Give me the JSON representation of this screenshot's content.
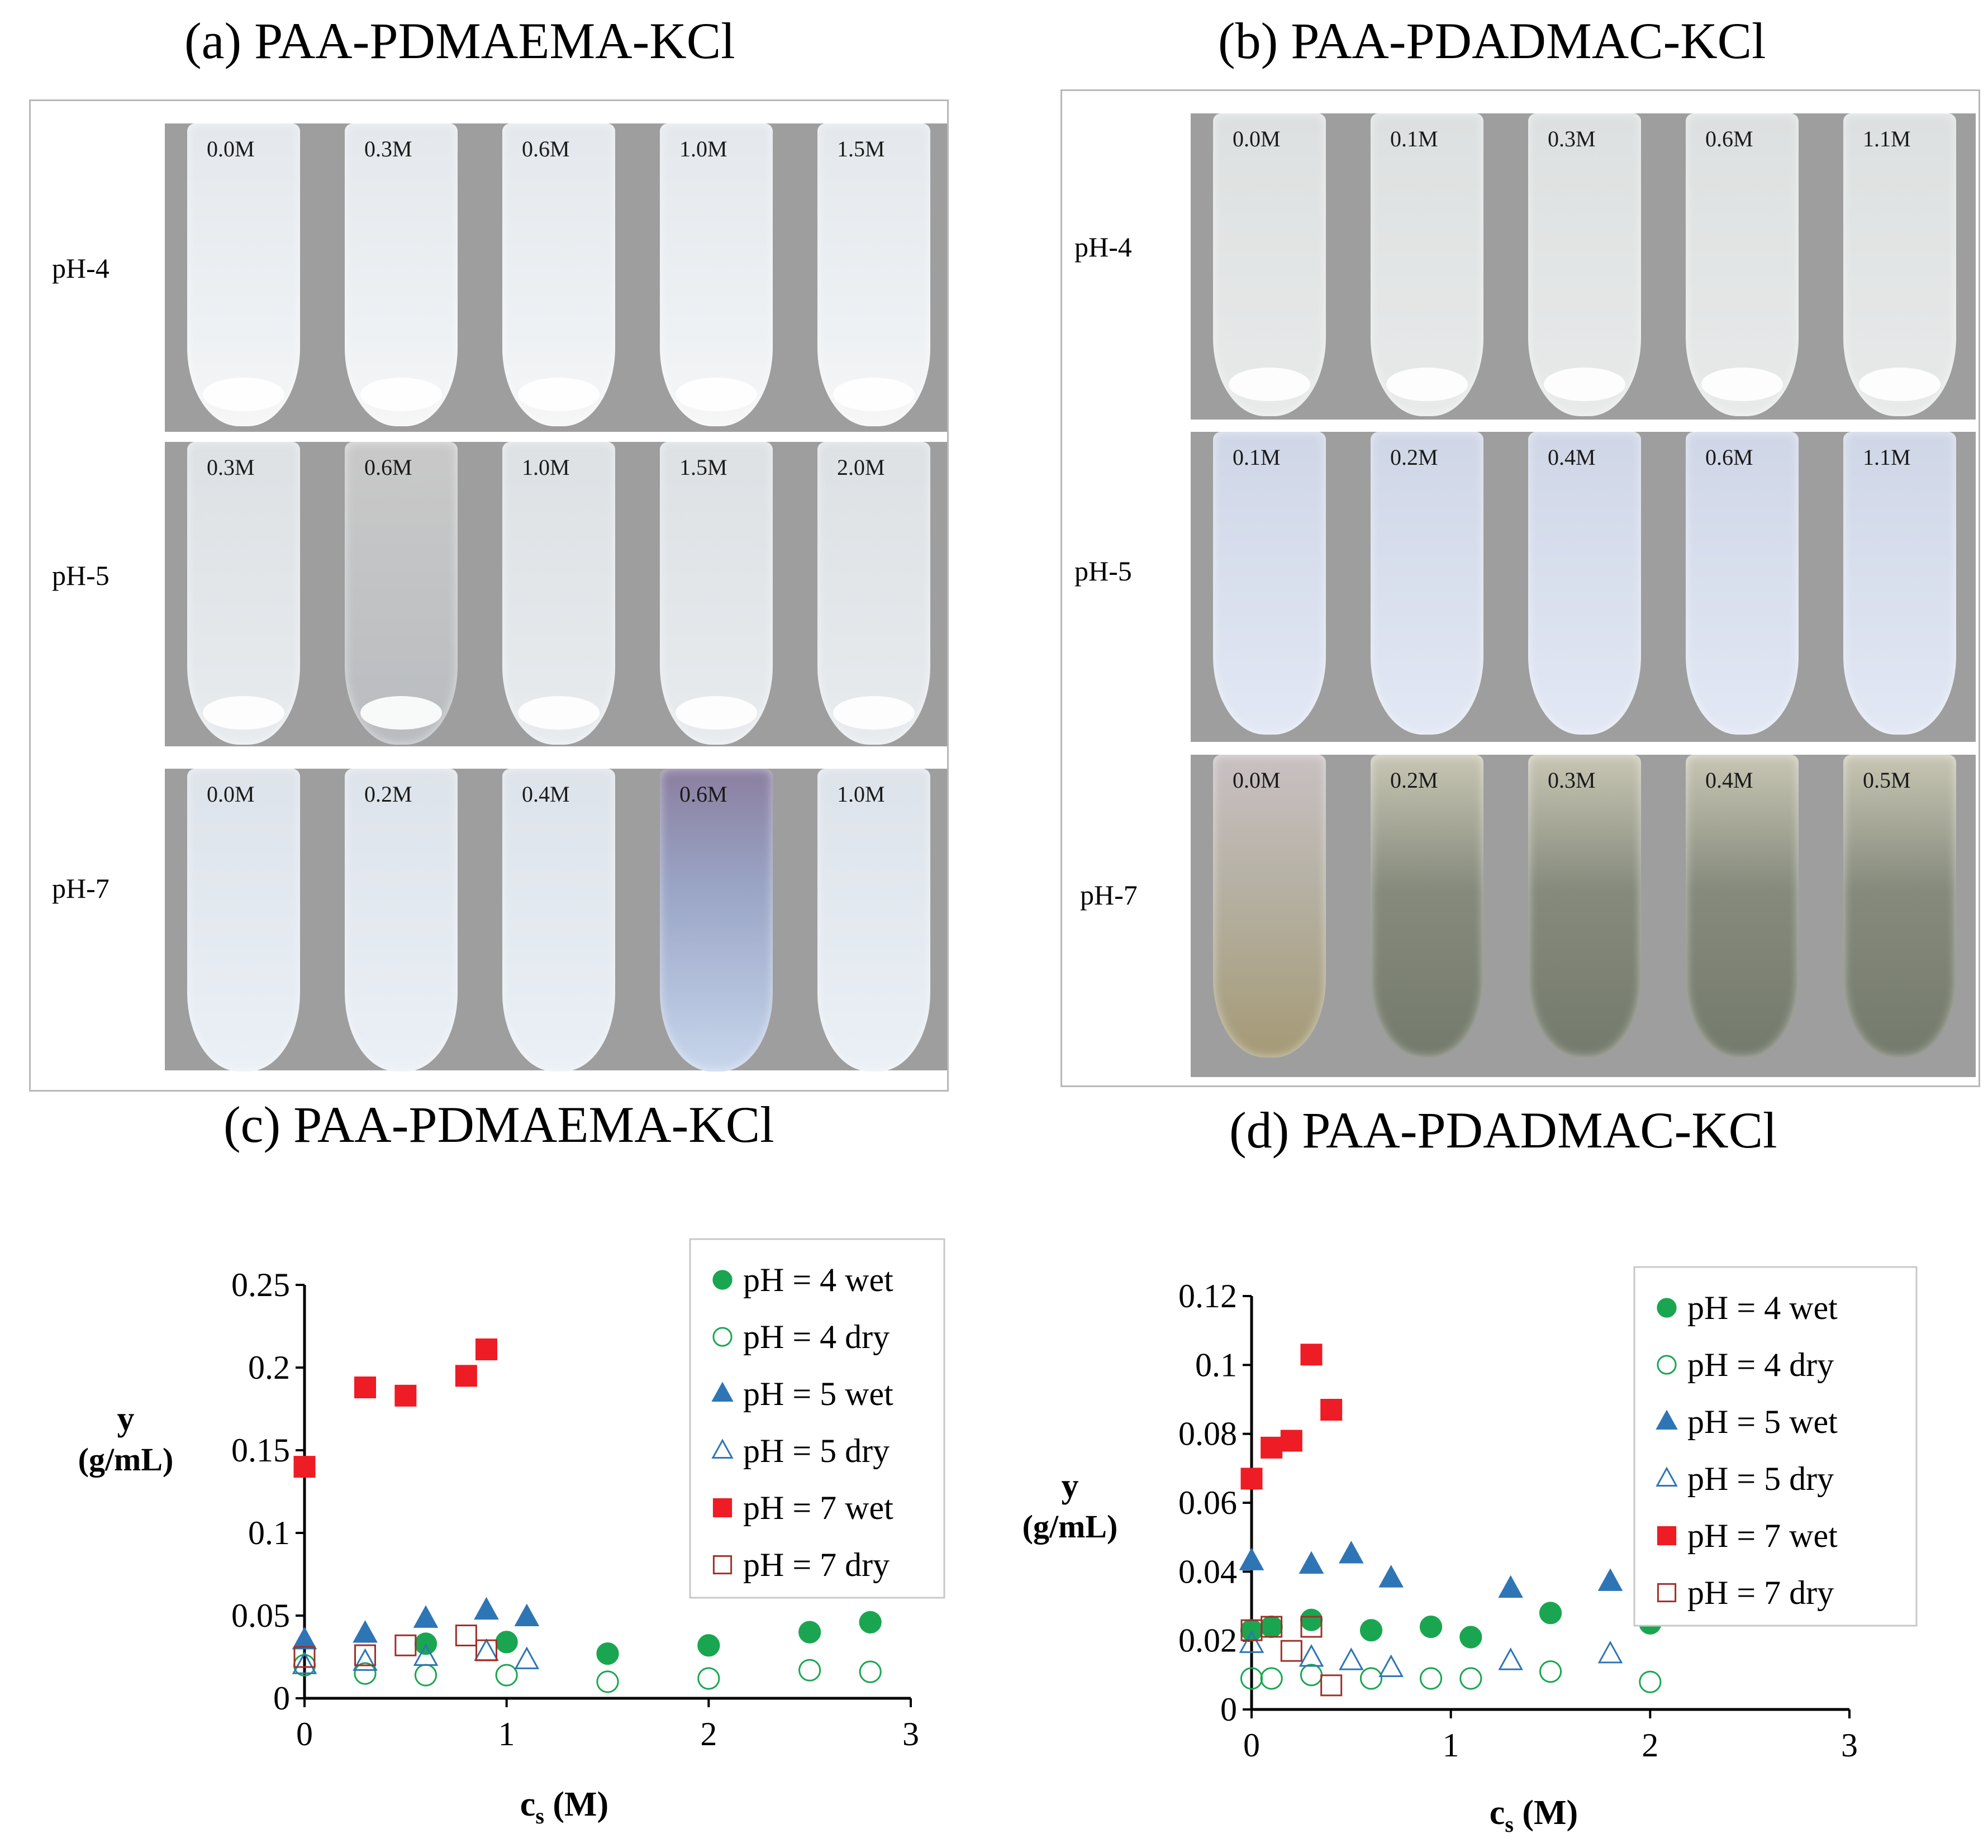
{
  "panels": {
    "a": {
      "title": "(a) PAA-PDMAEMA-KCl",
      "rows": [
        {
          "label": "pH-4",
          "concs": [
            "0.0M",
            "0.3M",
            "0.6M",
            "1.0M",
            "1.5M"
          ]
        },
        {
          "label": "pH-5",
          "concs": [
            "0.3M",
            "0.6M",
            "1.0M",
            "1.5M",
            "2.0M"
          ]
        },
        {
          "label": "pH-7",
          "concs": [
            "0.0M",
            "0.2M",
            "0.4M",
            "0.6M",
            "1.0M"
          ]
        }
      ]
    },
    "b": {
      "title": "(b) PAA-PDADMAC-KCl",
      "rows": [
        {
          "label": "pH-4",
          "concs": [
            "0.0M",
            "0.1M",
            "0.3M",
            "0.6M",
            "1.1M"
          ]
        },
        {
          "label": "pH-5",
          "concs": [
            "0.1M",
            "0.2M",
            "0.4M",
            "0.6M",
            "1.1M"
          ]
        },
        {
          "label": "pH-7",
          "concs": [
            "0.0M",
            "0.2M",
            "0.3M",
            "0.4M",
            "0.5M"
          ]
        }
      ]
    }
  },
  "colors": {
    "green": "#1aa650",
    "blue": "#2e75b6",
    "red": "#ee1c24",
    "darkred": "#a0302a"
  },
  "chart_data": [
    {
      "id": "c",
      "type": "scatter",
      "title": "(c) PAA-PDMAEMA-KCl",
      "xlabel": "c",
      "xlabel_sub": "s",
      "xlabel_unit": " (M)",
      "ylabel": "y",
      "ylabel_unit": "(g/mL)",
      "xlim": [
        0,
        3
      ],
      "ylim": [
        0,
        0.25
      ],
      "xticks": [
        "0",
        "1",
        "2",
        "3"
      ],
      "yticks": [
        "0",
        "0.05",
        "0.1",
        "0.15",
        "0.2",
        "0.25"
      ],
      "legend_position": "top-right",
      "series": [
        {
          "name": "pH = 4 wet",
          "marker": "circle",
          "filled": true,
          "color": "green",
          "x": [
            0.6,
            1.0,
            1.5,
            2.0,
            2.5,
            2.8
          ],
          "y": [
            0.033,
            0.034,
            0.027,
            0.032,
            0.04,
            0.046
          ]
        },
        {
          "name": "pH = 4 dry",
          "marker": "circle",
          "filled": false,
          "color": "green",
          "x": [
            0,
            0.3,
            0.6,
            1.0,
            1.5,
            2.0,
            2.5,
            2.8
          ],
          "y": [
            0.02,
            0.015,
            0.014,
            0.014,
            0.01,
            0.012,
            0.017,
            0.016
          ]
        },
        {
          "name": "pH = 5 wet",
          "marker": "triangle",
          "filled": true,
          "color": "blue",
          "x": [
            0,
            0.3,
            0.6,
            0.9,
            1.1
          ],
          "y": [
            0.035,
            0.039,
            0.048,
            0.053,
            0.049
          ]
        },
        {
          "name": "pH = 5 dry",
          "marker": "triangle",
          "filled": false,
          "color": "blue",
          "x": [
            0,
            0.3,
            0.6,
            0.9,
            1.1
          ],
          "y": [
            0.02,
            0.022,
            0.025,
            0.028,
            0.023
          ]
        },
        {
          "name": "pH = 7 wet",
          "marker": "square",
          "filled": true,
          "color": "red",
          "x": [
            0,
            0.3,
            0.5,
            0.8,
            0.9
          ],
          "y": [
            0.14,
            0.188,
            0.183,
            0.195,
            0.211
          ]
        },
        {
          "name": "pH = 7 dry",
          "marker": "square",
          "filled": false,
          "color": "darkred",
          "x": [
            0,
            0.3,
            0.5,
            0.8,
            0.9
          ],
          "y": [
            0.025,
            0.026,
            0.032,
            0.038,
            0.029
          ]
        }
      ]
    },
    {
      "id": "d",
      "type": "scatter",
      "title": "(d) PAA-PDADMAC-KCl",
      "xlabel": "c",
      "xlabel_sub": "s",
      "xlabel_unit": " (M)",
      "ylabel": "y",
      "ylabel_unit": "(g/mL)",
      "xlim": [
        0,
        3
      ],
      "ylim": [
        0,
        0.12
      ],
      "xticks": [
        "0",
        "1",
        "2",
        "3"
      ],
      "yticks": [
        "0",
        "0.02",
        "0.04",
        "0.06",
        "0.08",
        "0.1",
        "0.12"
      ],
      "legend_position": "top-right",
      "series": [
        {
          "name": "pH = 4 wet",
          "marker": "circle",
          "filled": true,
          "color": "green",
          "x": [
            0,
            0.1,
            0.3,
            0.6,
            0.9,
            1.1,
            1.5,
            2.0
          ],
          "y": [
            0.023,
            0.024,
            0.026,
            0.023,
            0.024,
            0.021,
            0.028,
            0.025
          ]
        },
        {
          "name": "pH = 4 dry",
          "marker": "circle",
          "filled": false,
          "color": "green",
          "x": [
            0,
            0.1,
            0.3,
            0.6,
            0.9,
            1.1,
            1.5,
            2.0
          ],
          "y": [
            0.009,
            0.009,
            0.01,
            0.009,
            0.009,
            0.009,
            0.011,
            0.008
          ]
        },
        {
          "name": "pH = 5 wet",
          "marker": "triangle",
          "filled": true,
          "color": "blue",
          "x": [
            0,
            0.3,
            0.5,
            0.7,
            1.3,
            1.8
          ],
          "y": [
            0.043,
            0.042,
            0.045,
            0.038,
            0.035,
            0.037
          ]
        },
        {
          "name": "pH = 5 dry",
          "marker": "triangle",
          "filled": false,
          "color": "blue",
          "x": [
            0,
            0.3,
            0.5,
            0.7,
            1.3,
            1.8
          ],
          "y": [
            0.019,
            0.015,
            0.014,
            0.012,
            0.014,
            0.016
          ]
        },
        {
          "name": "pH = 7 wet",
          "marker": "square",
          "filled": true,
          "color": "red",
          "x": [
            0,
            0.1,
            0.2,
            0.3,
            0.4
          ],
          "y": [
            0.067,
            0.076,
            0.078,
            0.103,
            0.087
          ]
        },
        {
          "name": "pH = 7 dry",
          "marker": "square",
          "filled": false,
          "color": "darkred",
          "x": [
            0,
            0.1,
            0.2,
            0.3,
            0.4
          ],
          "y": [
            0.023,
            0.024,
            0.017,
            0.024,
            0.007
          ]
        }
      ]
    }
  ]
}
